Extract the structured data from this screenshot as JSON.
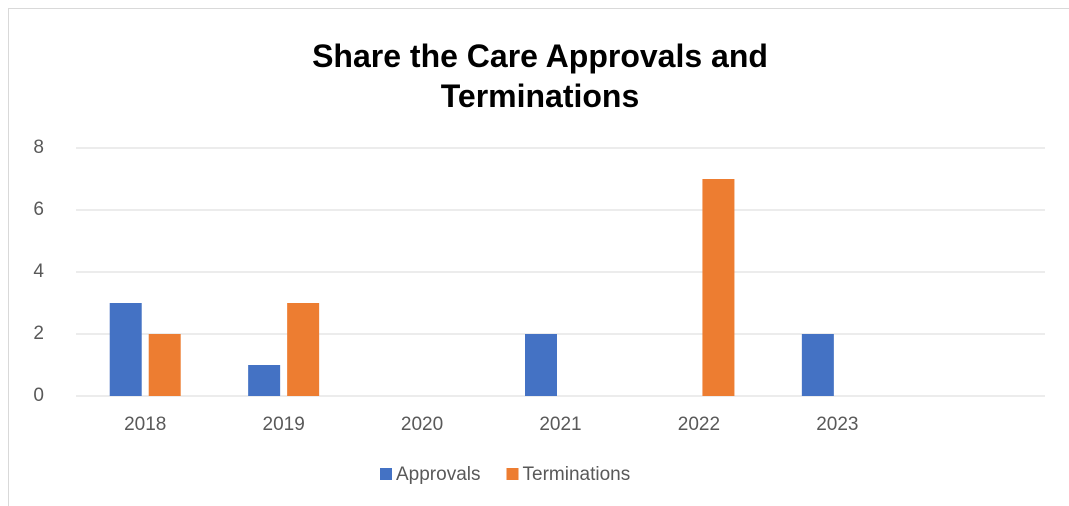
{
  "chart_data": {
    "type": "bar",
    "title": "Share the Care Approvals and Terminations",
    "categories": [
      "2018",
      "2019",
      "2020",
      "2021",
      "2022",
      "2023",
      null
    ],
    "series": [
      {
        "name": "Approvals",
        "color": "#4472c4",
        "values": [
          3,
          1,
          0,
          2,
          0,
          2,
          null
        ]
      },
      {
        "name": "Terminations",
        "color": "#ed7d31",
        "values": [
          2,
          3,
          0,
          0,
          7,
          0,
          null
        ]
      }
    ],
    "ylim": [
      0,
      8
    ],
    "yticks": [
      0,
      2,
      4,
      6,
      8
    ],
    "grid": true,
    "legend": "bottom"
  }
}
